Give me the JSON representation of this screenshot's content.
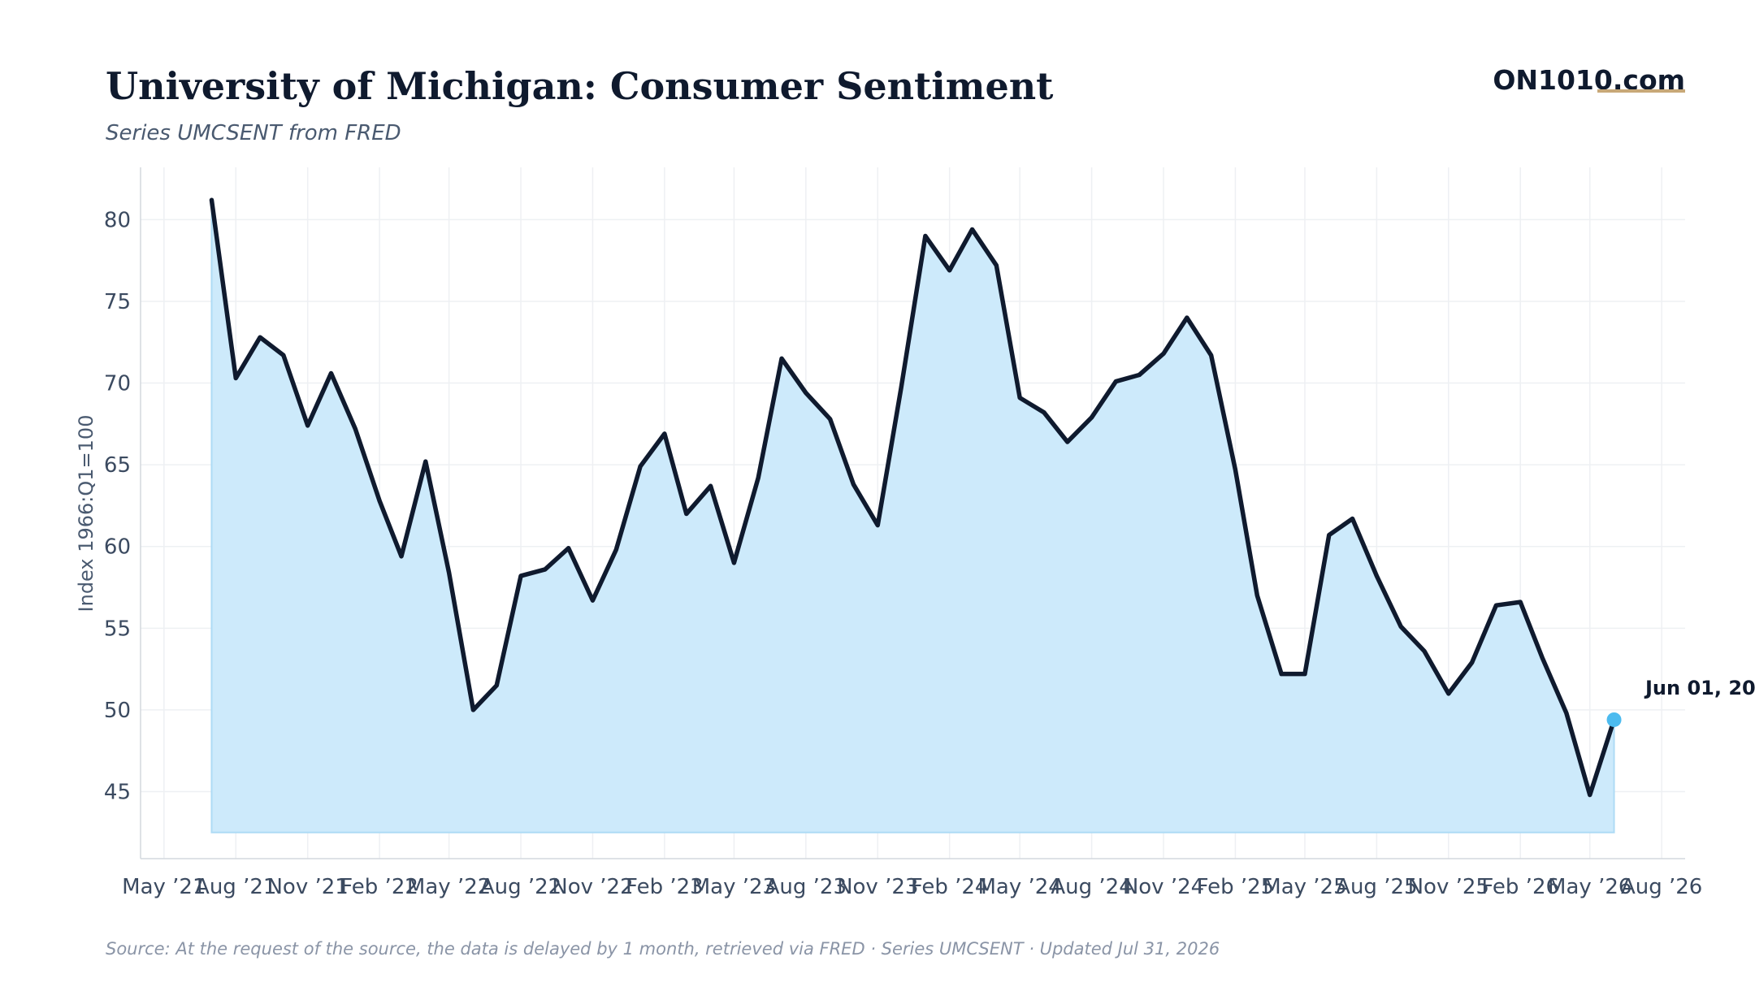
{
  "header": {
    "title": "University of Michigan: Consumer Sentiment",
    "subtitle": "Series UMCSENT from FRED",
    "brand": "ON1010.com"
  },
  "footer": {
    "source": "Source: At the request of the source, the data is delayed by 1 month, retrieved via FRED · Series UMCSENT · Updated Jul 31, 2026"
  },
  "annotation": {
    "label": "Jun 01, 20"
  },
  "colors": {
    "line": "#0f1a2e",
    "fill": "#cdeafb",
    "fill_edge": "#aedbf5",
    "marker": "#4cbbef",
    "brand_underline": "#c8a878",
    "axis": "#d4d8de"
  },
  "chart_data": {
    "type": "area",
    "title": "University of Michigan: Consumer Sentiment",
    "subtitle": "Series UMCSENT from FRED",
    "xlabel": "",
    "ylabel": "Index 1966:Q1=100",
    "ylim": [
      40.9,
      83.2
    ],
    "xlim": [
      "2021-04-01",
      "2026-08-31"
    ],
    "yticks": [
      45,
      50,
      55,
      60,
      65,
      70,
      75,
      80
    ],
    "xticks": [
      {
        "date": "2021-05-01",
        "label": "May ’21"
      },
      {
        "date": "2021-08-01",
        "label": "Aug ’21"
      },
      {
        "date": "2021-11-01",
        "label": "Nov ’21"
      },
      {
        "date": "2022-02-01",
        "label": "Feb ’22"
      },
      {
        "date": "2022-05-01",
        "label": "May ’22"
      },
      {
        "date": "2022-08-01",
        "label": "Aug ’22"
      },
      {
        "date": "2022-11-01",
        "label": "Nov ’22"
      },
      {
        "date": "2023-02-01",
        "label": "Feb ’23"
      },
      {
        "date": "2023-05-01",
        "label": "May ’23"
      },
      {
        "date": "2023-08-01",
        "label": "Aug ’23"
      },
      {
        "date": "2023-11-01",
        "label": "Nov ’23"
      },
      {
        "date": "2024-02-01",
        "label": "Feb ’24"
      },
      {
        "date": "2024-05-01",
        "label": "May ’24"
      },
      {
        "date": "2024-08-01",
        "label": "Aug ’24"
      },
      {
        "date": "2024-11-01",
        "label": "Nov ’24"
      },
      {
        "date": "2025-02-01",
        "label": "Feb ’25"
      },
      {
        "date": "2025-05-01",
        "label": "May ’25"
      },
      {
        "date": "2025-08-01",
        "label": "Aug ’25"
      },
      {
        "date": "2025-11-01",
        "label": "Nov ’25"
      },
      {
        "date": "2026-02-01",
        "label": "Feb ’26"
      },
      {
        "date": "2026-05-01",
        "label": "May ’26"
      },
      {
        "date": "2026-08-01",
        "label": "Aug ’26"
      }
    ],
    "grid": true,
    "area_baseline": 42.5,
    "highlight_last_point": true,
    "series": [
      {
        "x": [
          "2021-07-01",
          "2021-08-01",
          "2021-09-01",
          "2021-10-01",
          "2021-11-01",
          "2021-12-01",
          "2022-01-01",
          "2022-02-01",
          "2022-03-01",
          "2022-04-01",
          "2022-05-01",
          "2022-06-01",
          "2022-07-01",
          "2022-08-01",
          "2022-09-01",
          "2022-10-01",
          "2022-11-01",
          "2022-12-01",
          "2023-01-01",
          "2023-02-01",
          "2023-03-01",
          "2023-04-01",
          "2023-05-01",
          "2023-06-01",
          "2023-07-01",
          "2023-08-01",
          "2023-09-01",
          "2023-10-01",
          "2023-11-01",
          "2023-12-01",
          "2024-01-01",
          "2024-02-01",
          "2024-03-01",
          "2024-04-01",
          "2024-05-01",
          "2024-06-01",
          "2024-07-01",
          "2024-08-01",
          "2024-09-01",
          "2024-10-01",
          "2024-11-01",
          "2024-12-01",
          "2025-01-01",
          "2025-02-01",
          "2025-03-01",
          "2025-04-01",
          "2025-05-01",
          "2025-06-01",
          "2025-07-01",
          "2025-08-01",
          "2025-09-01",
          "2025-10-01",
          "2025-11-01",
          "2025-12-01",
          "2026-01-01",
          "2026-02-01",
          "2026-03-01",
          "2026-04-01",
          "2026-05-01",
          "2026-06-01"
        ],
        "values": [
          81.2,
          70.3,
          72.8,
          71.7,
          67.4,
          70.6,
          67.2,
          62.8,
          59.4,
          65.2,
          58.4,
          50.0,
          51.5,
          58.2,
          58.6,
          59.9,
          56.7,
          59.8,
          64.9,
          66.9,
          62.0,
          63.7,
          59.0,
          64.2,
          71.5,
          69.4,
          67.8,
          63.8,
          61.3,
          69.7,
          79.0,
          76.9,
          79.4,
          77.2,
          69.1,
          68.2,
          66.4,
          67.9,
          70.1,
          70.5,
          71.8,
          74.0,
          71.7,
          64.7,
          57.0,
          52.2,
          52.2,
          60.7,
          61.7,
          58.2,
          55.1,
          53.6,
          51.0,
          52.9,
          56.4,
          56.6,
          53.2,
          49.8,
          44.8,
          49.4
        ]
      }
    ]
  }
}
